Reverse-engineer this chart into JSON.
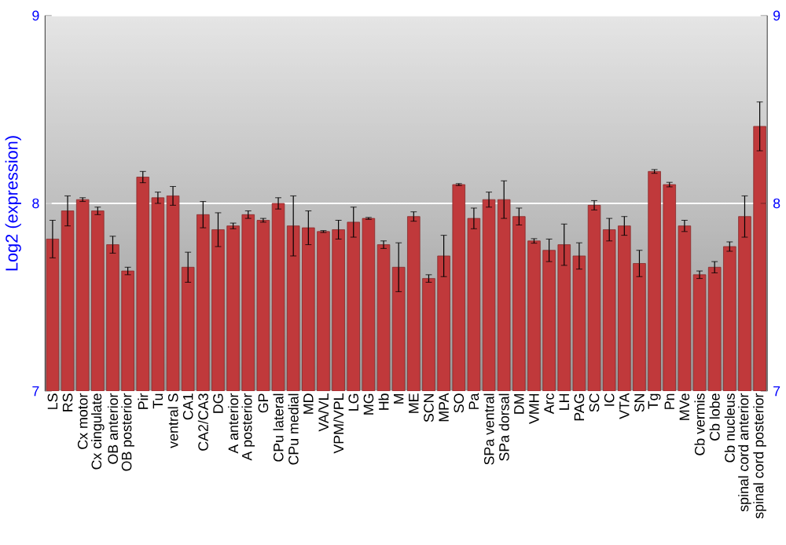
{
  "chart_data": {
    "type": "bar",
    "ylabel": "Log2 (expression)",
    "categories": [
      "LS",
      "RS",
      "Cx motor",
      "Cx cingulate",
      "OB anterior",
      "OB posterior",
      "Pir",
      "Tu",
      "ventral S",
      "CA1",
      "CA2/CA3",
      "DG",
      "A anterior",
      "A posterior",
      "GP",
      "CPu lateral",
      "CPu medial",
      "MD",
      "VA/VL",
      "VPM/VPL",
      "LG",
      "MG",
      "Hb",
      "M",
      "ME",
      "SCN",
      "MPA",
      "SO",
      "Pa",
      "SPa ventral",
      "SPa dorsal",
      "DM",
      "VMH",
      "Arc",
      "LH",
      "PAG",
      "SC",
      "IC",
      "VTA",
      "SN",
      "Tg",
      "Pn",
      "MVe",
      "Cb vermis",
      "Cb lobe",
      "Cb nucleus",
      "spinal cord anterior",
      "spinal cord posterior"
    ],
    "values": [
      7.81,
      7.96,
      8.02,
      7.96,
      7.78,
      7.64,
      8.14,
      8.03,
      8.04,
      7.66,
      7.94,
      7.86,
      7.88,
      7.94,
      7.91,
      8.0,
      7.88,
      7.87,
      7.85,
      7.86,
      7.9,
      7.92,
      7.78,
      7.66,
      7.93,
      7.6,
      7.72,
      8.1,
      7.92,
      8.02,
      8.02,
      7.93,
      7.8,
      7.75,
      7.78,
      7.72,
      7.99,
      7.86,
      7.88,
      7.68,
      8.17,
      8.1,
      7.88,
      7.62,
      7.66,
      7.77,
      7.93,
      8.41
    ],
    "errors": [
      0.1,
      0.08,
      0.01,
      0.02,
      0.045,
      0.02,
      0.03,
      0.03,
      0.05,
      0.08,
      0.07,
      0.09,
      0.015,
      0.02,
      0.01,
      0.03,
      0.16,
      0.09,
      0.005,
      0.05,
      0.08,
      0.005,
      0.02,
      0.13,
      0.025,
      0.02,
      0.11,
      0.005,
      0.055,
      0.04,
      0.1,
      0.045,
      0.012,
      0.06,
      0.11,
      0.07,
      0.025,
      0.06,
      0.05,
      0.07,
      0.01,
      0.012,
      0.03,
      0.02,
      0.03,
      0.025,
      0.11,
      0.13
    ],
    "color": "#c0393b",
    "ylim": [
      7,
      9
    ],
    "yticks": [
      7,
      8,
      9
    ],
    "y2lim": [
      7,
      9
    ],
    "y2ticks": [
      7,
      8,
      9
    ],
    "grid": "y"
  }
}
